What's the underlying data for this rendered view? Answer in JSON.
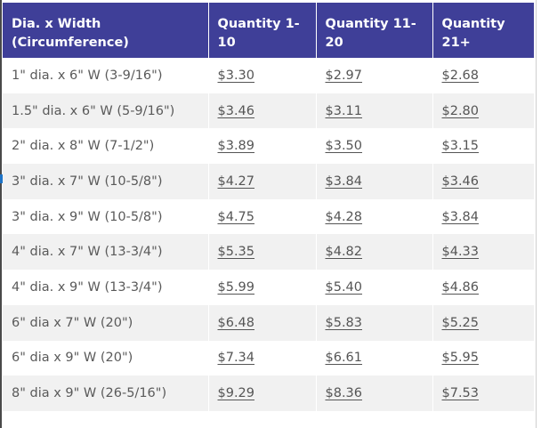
{
  "colors": {
    "header_bg": "#3f3f98",
    "row_odd": "#ffffff",
    "row_even": "#f1f1f1",
    "left_accent": "#1e74c8"
  },
  "table": {
    "headers": [
      [
        "Dia. x Width",
        "(Circumference)"
      ],
      [
        "Quantity 1-",
        "10"
      ],
      [
        "Quantity 11-",
        "20"
      ],
      [
        "Quantity",
        "21+"
      ]
    ],
    "rows": [
      {
        "size": "1\" dia. x 6\" W (3-9/16\")",
        "prices": [
          "$3.30",
          "$2.97",
          "$2.68"
        ]
      },
      {
        "size": "1.5\" dia. x 6\" W (5-9/16\")",
        "prices": [
          "$3.46",
          "$3.11",
          "$2.80"
        ]
      },
      {
        "size": "2\" dia. x 8\" W (7-1/2\")",
        "prices": [
          "$3.89",
          "$3.50",
          "$3.15"
        ]
      },
      {
        "size": "3\" dia. x 7\" W (10-5/8\")",
        "prices": [
          "$4.27",
          "$3.84",
          "$3.46"
        ]
      },
      {
        "size": "3\" dia. x 9\" W (10-5/8\")",
        "prices": [
          "$4.75",
          "$4.28",
          "$3.84"
        ]
      },
      {
        "size": "4\" dia. x 7\" W (13-3/4\")",
        "prices": [
          "$5.35",
          "$4.82",
          "$4.33"
        ]
      },
      {
        "size": "4\" dia. x 9\" W (13-3/4\")",
        "prices": [
          "$5.99",
          "$5.40",
          "$4.86"
        ]
      },
      {
        "size": "6\" dia x 7\" W (20\")",
        "prices": [
          "$6.48",
          "$5.83",
          "$5.25"
        ]
      },
      {
        "size": "6\" dia x 9\" W (20\")",
        "prices": [
          "$7.34",
          "$6.61",
          "$5.95"
        ]
      },
      {
        "size": "8\" dia x 9\" W (26-5/16\")",
        "prices": [
          "$9.29",
          "$8.36",
          "$7.53"
        ]
      }
    ]
  }
}
